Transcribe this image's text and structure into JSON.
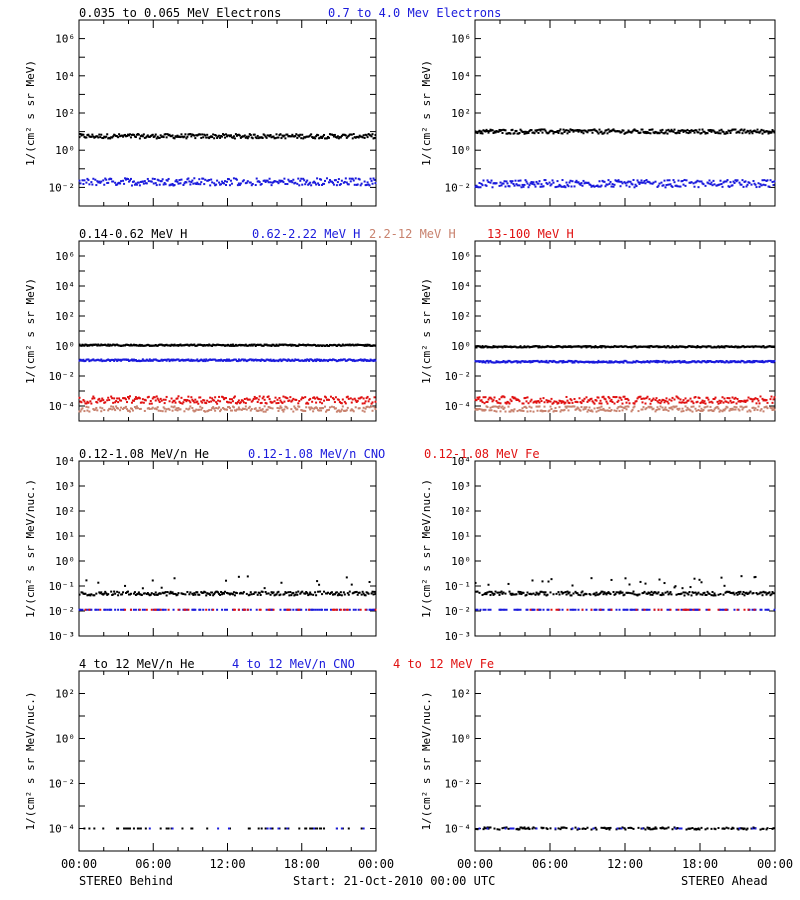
{
  "colors": {
    "black": "#000000",
    "blue": "#1a1adc",
    "salmon": "#c8826e",
    "red": "#e01010"
  },
  "footer": {
    "left": "STEREO Behind",
    "center": "Start: 21-Oct-2010 00:00 UTC",
    "right": "STEREO Ahead"
  },
  "x_tick_labels": [
    "00:00",
    "06:00",
    "12:00",
    "18:00",
    "00:00"
  ],
  "chart_data": [
    {
      "type": "scatter",
      "row": "electrons",
      "legend": [
        {
          "name": "0.035 to 0.065 MeV Electrons",
          "color": "black"
        },
        {
          "name": "0.7 to 4.0 Mev Electrons",
          "color": "blue"
        }
      ],
      "ylabel": "1/(cm² s sr MeV)",
      "y_scale": "log",
      "ylim_exp": [
        -3,
        7
      ],
      "y_ticks": [
        {
          "exp": -2,
          "label": "10⁻²"
        },
        {
          "exp": 0,
          "label": "10⁰"
        },
        {
          "exp": 2,
          "label": "10²"
        },
        {
          "exp": 4,
          "label": "10⁴"
        },
        {
          "exp": 6,
          "label": "10⁶"
        }
      ],
      "xlim_hours": [
        0,
        24
      ],
      "panels": [
        {
          "spacecraft": "Behind",
          "series": [
            {
              "legend": 0,
              "level_exp": 0.75,
              "spread": 0.12,
              "density": 1.0
            },
            {
              "legend": 1,
              "level_exp": -1.7,
              "spread": 0.2,
              "density": 0.9
            }
          ]
        },
        {
          "spacecraft": "Ahead",
          "series": [
            {
              "legend": 0,
              "level_exp": 1.0,
              "spread": 0.12,
              "density": 1.0
            },
            {
              "legend": 1,
              "level_exp": -1.8,
              "spread": 0.2,
              "density": 0.9
            }
          ]
        }
      ]
    },
    {
      "type": "scatter",
      "row": "protons",
      "legend": [
        {
          "name": "0.14-0.62 MeV H",
          "color": "black"
        },
        {
          "name": "0.62-2.22 MeV H",
          "color": "blue"
        },
        {
          "name": "2.2-12 MeV H",
          "color": "salmon"
        },
        {
          "name": "13-100 MeV H",
          "color": "red"
        }
      ],
      "ylabel": "1/(cm² s sr MeV)",
      "y_scale": "log",
      "ylim_exp": [
        -5,
        7
      ],
      "y_ticks": [
        {
          "exp": -4,
          "label": "10⁻⁴"
        },
        {
          "exp": -2,
          "label": "10⁻²"
        },
        {
          "exp": 0,
          "label": "10⁰"
        },
        {
          "exp": 2,
          "label": "10²"
        },
        {
          "exp": 4,
          "label": "10⁴"
        },
        {
          "exp": 6,
          "label": "10⁶"
        }
      ],
      "xlim_hours": [
        0,
        24
      ],
      "panels": [
        {
          "spacecraft": "Behind",
          "series": [
            {
              "legend": 0,
              "level_exp": 0.05,
              "spread": 0.05,
              "density": 1.0
            },
            {
              "legend": 1,
              "level_exp": -0.95,
              "spread": 0.06,
              "density": 1.0
            },
            {
              "legend": 2,
              "level_exp": -4.2,
              "spread": 0.18,
              "density": 0.8
            },
            {
              "legend": 3,
              "level_exp": -3.6,
              "spread": 0.25,
              "density": 0.9
            }
          ]
        },
        {
          "spacecraft": "Ahead",
          "series": [
            {
              "legend": 0,
              "level_exp": -0.05,
              "spread": 0.05,
              "density": 1.0
            },
            {
              "legend": 1,
              "level_exp": -1.05,
              "spread": 0.06,
              "density": 1.0
            },
            {
              "legend": 2,
              "level_exp": -4.2,
              "spread": 0.18,
              "density": 0.8
            },
            {
              "legend": 3,
              "level_exp": -3.6,
              "spread": 0.25,
              "density": 0.9
            }
          ]
        }
      ]
    },
    {
      "type": "scatter",
      "row": "heavy-ions-low",
      "legend": [
        {
          "name": "0.12-1.08 MeV/n He",
          "color": "black"
        },
        {
          "name": "0.12-1.08 MeV/n CNO",
          "color": "blue"
        },
        {
          "name": "0.12-1.08 MeV Fe",
          "color": "red"
        }
      ],
      "ylabel": "1/(cm² s sr MeV/nuc.)",
      "y_scale": "log",
      "ylim_exp": [
        -3,
        4
      ],
      "y_ticks": [
        {
          "exp": -3,
          "label": "10⁻³"
        },
        {
          "exp": -2,
          "label": "10⁻²"
        },
        {
          "exp": -1,
          "label": "10⁻¹"
        },
        {
          "exp": 0,
          "label": "10⁰"
        },
        {
          "exp": 1,
          "label": "10¹"
        },
        {
          "exp": 2,
          "label": "10²"
        },
        {
          "exp": 3,
          "label": "10³"
        },
        {
          "exp": 4,
          "label": "10⁴"
        }
      ],
      "xlim_hours": [
        0,
        24
      ],
      "panels": [
        {
          "spacecraft": "Behind",
          "series": [
            {
              "legend": 0,
              "level_exp": -1.3,
              "spread": 0.08,
              "density": 0.85,
              "sparse_upper": true
            },
            {
              "legend": 1,
              "level_exp": -1.95,
              "spread": 0.0,
              "density": 0.35
            },
            {
              "legend": 2,
              "level_exp": -1.95,
              "spread": 0.0,
              "density": 0.12
            }
          ]
        },
        {
          "spacecraft": "Ahead",
          "series": [
            {
              "legend": 0,
              "level_exp": -1.3,
              "spread": 0.08,
              "density": 0.85,
              "sparse_upper": true
            },
            {
              "legend": 1,
              "level_exp": -1.95,
              "spread": 0.0,
              "density": 0.35
            },
            {
              "legend": 2,
              "level_exp": -1.95,
              "spread": 0.0,
              "density": 0.12
            }
          ]
        }
      ]
    },
    {
      "type": "scatter",
      "row": "heavy-ions-high",
      "legend": [
        {
          "name": "4 to 12 MeV/n He",
          "color": "black"
        },
        {
          "name": "4 to 12 MeV/n CNO",
          "color": "blue"
        },
        {
          "name": "4 to 12 MeV Fe",
          "color": "red"
        }
      ],
      "ylabel": "1/(cm² s sr MeV/nuc.)",
      "y_scale": "log",
      "ylim_exp": [
        -5,
        3
      ],
      "y_ticks": [
        {
          "exp": -4,
          "label": "10⁻⁴"
        },
        {
          "exp": -2,
          "label": "10⁻²"
        },
        {
          "exp": 0,
          "label": "10⁰"
        },
        {
          "exp": 2,
          "label": "10²"
        }
      ],
      "xlim_hours": [
        0,
        24
      ],
      "panels": [
        {
          "spacecraft": "Behind",
          "series": [
            {
              "legend": 0,
              "level_exp": -4.0,
              "spread": 0.0,
              "density": 0.18
            },
            {
              "legend": 1,
              "level_exp": -4.0,
              "spread": 0.0,
              "density": 0.03
            }
          ]
        },
        {
          "spacecraft": "Ahead",
          "series": [
            {
              "legend": 0,
              "level_exp": -4.0,
              "spread": 0.05,
              "density": 0.45
            },
            {
              "legend": 1,
              "level_exp": -4.0,
              "spread": 0.0,
              "density": 0.05
            },
            {
              "legend": 2,
              "level_exp": -4.5,
              "spread": 0.0,
              "density": 0.01
            }
          ]
        }
      ]
    }
  ]
}
